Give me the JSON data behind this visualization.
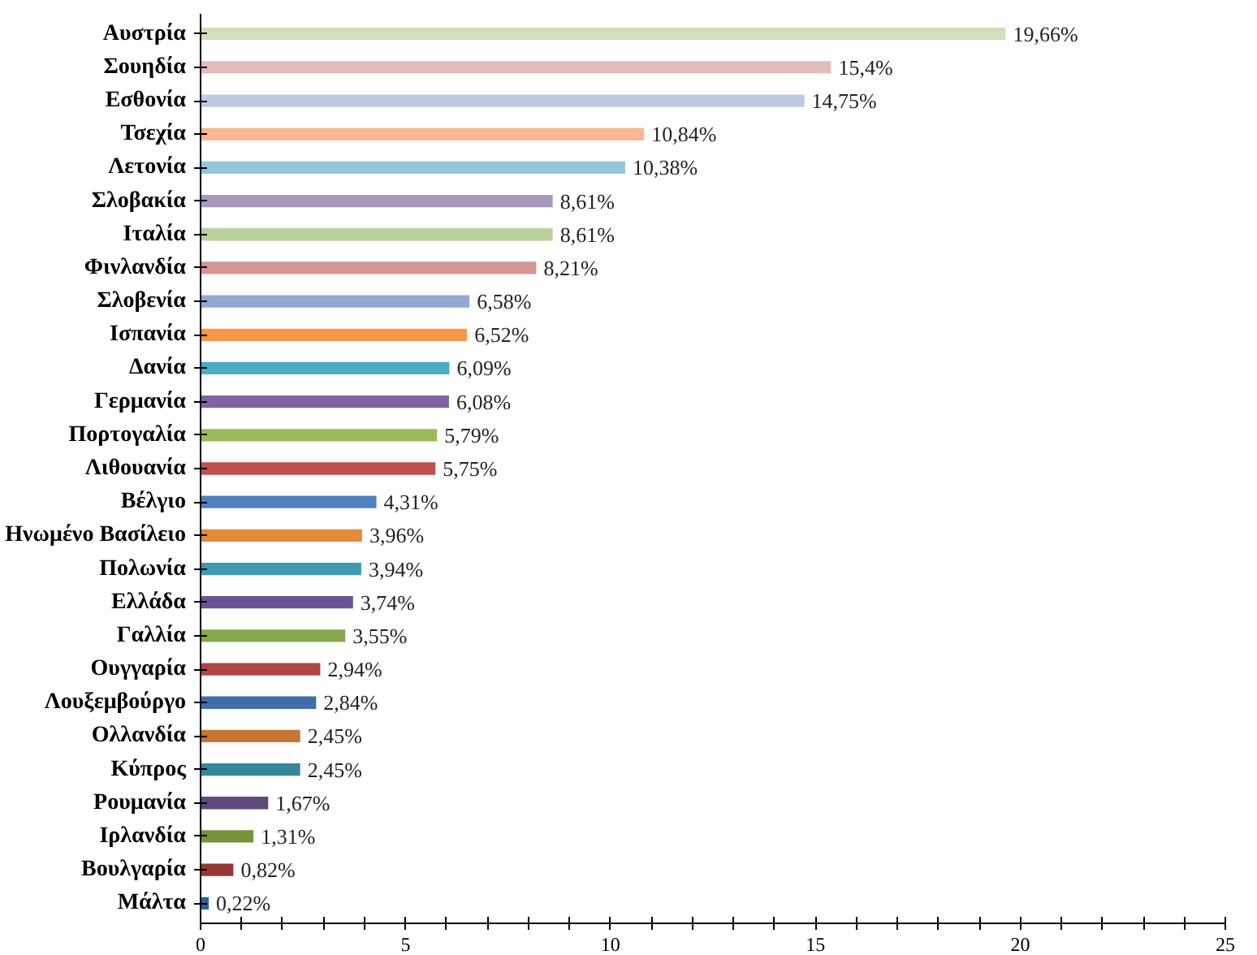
{
  "chart_data": {
    "type": "bar",
    "orientation": "horizontal",
    "categories": [
      "Αυστρία",
      "Σουηδία",
      "Εσθονία",
      "Τσεχία",
      "Λετονία",
      "Σλοβακία",
      "Ιταλία",
      "Φινλανδία",
      "Σλοβενία",
      "Ισπανία",
      "Δανία",
      "Γερμανία",
      "Πορτογαλία",
      "Λιθουανία",
      "Βέλγιο",
      "Ηνωμένο Βασίλειο",
      "Πολωνία",
      "Ελλάδα",
      "Γαλλία",
      "Ουγγαρία",
      "Λουξεμβούργο",
      "Ολλανδία",
      "Κύπρος",
      "Ρουμανία",
      "Ιρλανδία",
      "Βουλγαρία",
      "Μάλτα"
    ],
    "values": [
      19.66,
      15.4,
      14.75,
      10.84,
      10.38,
      8.61,
      8.61,
      8.21,
      6.58,
      6.52,
      6.09,
      6.08,
      5.79,
      5.75,
      4.31,
      3.96,
      3.94,
      3.74,
      3.55,
      2.94,
      2.84,
      2.45,
      2.45,
      1.67,
      1.31,
      0.82,
      0.22
    ],
    "value_labels": [
      "19,66%",
      "15,4%",
      "14,75%",
      "10,84%",
      "10,38%",
      "8,61%",
      "8,61%",
      "8,21%",
      "6,58%",
      "6,52%",
      "6,09%",
      "6,08%",
      "5,79%",
      "5,75%",
      "4,31%",
      "3,96%",
      "3,94%",
      "3,74%",
      "3,55%",
      "2,94%",
      "2,84%",
      "2,45%",
      "2,45%",
      "1,67%",
      "1,31%",
      "0,82%",
      "0,22%"
    ],
    "colors": [
      "#d1e0bf",
      "#e4bcbc",
      "#bccae3",
      "#f8b892",
      "#93c6d6",
      "#a898be",
      "#b9d19a",
      "#d49595",
      "#93a9d2",
      "#f79646",
      "#4bacc6",
      "#8064a2",
      "#9bbb59",
      "#c0504d",
      "#4f81bd",
      "#e48b3c",
      "#3f9ab1",
      "#6a5494",
      "#86a84a",
      "#b04644",
      "#3f6eaa",
      "#c67634",
      "#34879b",
      "#5f497a",
      "#77933c",
      "#953735",
      "#366092"
    ],
    "xlim": [
      0,
      25
    ],
    "xticks": [
      0,
      {
        "value": 1,
        "label": null
      },
      {
        "value": 2,
        "label": null
      },
      {
        "value": 3,
        "label": null
      },
      {
        "value": 4,
        "label": null
      },
      5,
      {
        "value": 6,
        "label": null
      },
      {
        "value": 7,
        "label": null
      },
      {
        "value": 8,
        "label": null
      },
      {
        "value": 9,
        "label": null
      },
      10,
      {
        "value": 11,
        "label": null
      },
      {
        "value": 12,
        "label": null
      },
      {
        "value": 13,
        "label": null
      },
      {
        "value": 14,
        "label": null
      },
      15,
      {
        "value": 16,
        "label": null
      },
      {
        "value": 17,
        "label": null
      },
      {
        "value": 18,
        "label": null
      },
      {
        "value": 19,
        "label": null
      },
      20,
      {
        "value": 21,
        "label": null
      },
      {
        "value": 22,
        "label": null
      },
      {
        "value": 23,
        "label": null
      },
      {
        "value": 24,
        "label": null
      },
      25
    ],
    "grid": false
  }
}
